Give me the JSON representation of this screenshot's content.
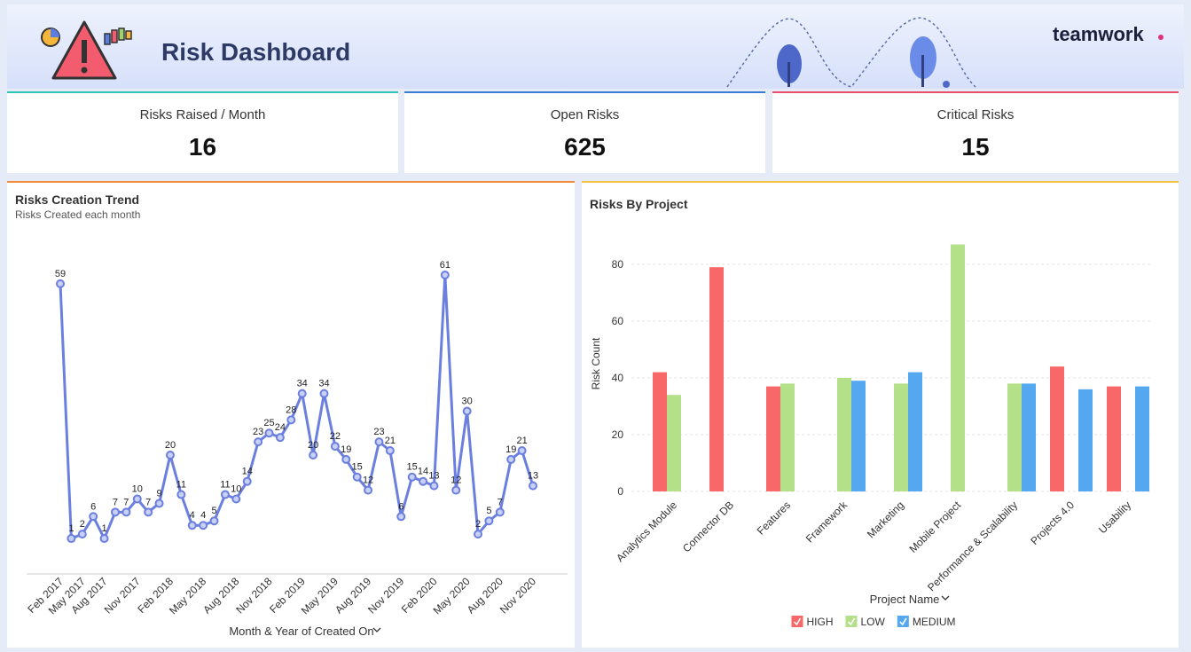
{
  "header": {
    "title": "Risk Dashboard",
    "brand": "teamwork"
  },
  "kpis": [
    {
      "label": "Risks Raised / Month",
      "value": 16
    },
    {
      "label": "Open Risks",
      "value": 625
    },
    {
      "label": "Critical Risks",
      "value": 15
    }
  ],
  "chart_data": [
    {
      "type": "line",
      "title": "Risks Creation Trend",
      "subtitle": "Risks Created each month",
      "x_label": "Month & Year of Created On",
      "color": "#6b7fe0",
      "categories": [
        "Feb 2017",
        null,
        "May 2017",
        null,
        "Aug 2017",
        null,
        null,
        "Nov 2017",
        null,
        null,
        "Feb 2018",
        null,
        null,
        "May 2018",
        null,
        null,
        "Aug 2018",
        null,
        null,
        "Nov 2018",
        null,
        null,
        "Feb 2019",
        null,
        null,
        "May 2019",
        null,
        null,
        "Aug 2019",
        null,
        null,
        "Nov 2019",
        null,
        null,
        "Feb 2020",
        null,
        null,
        "May 2020",
        null,
        null,
        "Aug 2020",
        null,
        null,
        "Nov 2020"
      ],
      "values": [
        59,
        1,
        2,
        6,
        1,
        7,
        7,
        10,
        7,
        9,
        20,
        11,
        4,
        4,
        5,
        11,
        10,
        14,
        23,
        25,
        24,
        28,
        34,
        20,
        34,
        22,
        19,
        15,
        12,
        23,
        21,
        6,
        15,
        14,
        13,
        61,
        12,
        30,
        2,
        5,
        7,
        19,
        21,
        13
      ]
    },
    {
      "type": "bar",
      "title": "Risks By Project",
      "x_label": "Project Name",
      "y_label": "Risk Count",
      "categories": [
        "Analytics Module",
        "Connector DB",
        "Features",
        "Framework",
        "Marketing",
        "Mobile Project",
        "Performance & Scalability",
        "Projects 4.0",
        "Usability"
      ],
      "series": [
        {
          "name": "HIGH",
          "color": "#f96868",
          "values": [
            42,
            79,
            37,
            null,
            null,
            null,
            null,
            44,
            37
          ]
        },
        {
          "name": "LOW",
          "color": "#b5e08a",
          "values": [
            34,
            null,
            38,
            40,
            38,
            87,
            38,
            null,
            null
          ]
        },
        {
          "name": "MEDIUM",
          "color": "#55a8f0",
          "values": [
            null,
            null,
            null,
            39,
            42,
            null,
            38,
            36,
            37
          ]
        }
      ],
      "ylim": [
        0,
        90
      ],
      "yticks": [
        0,
        20,
        40,
        60,
        80
      ],
      "grid": true,
      "legend": "bottom"
    }
  ]
}
